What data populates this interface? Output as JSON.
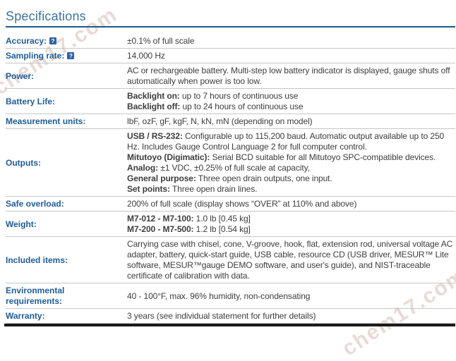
{
  "watermark": {
    "text": "chem17.com"
  },
  "header": {
    "title": "Specifications"
  },
  "help_glyph": "?",
  "colors": {
    "title": "#3b74a1",
    "header_rule": "#1f5a83",
    "label_text": "#1e5c9a",
    "value_text": "#3d3d3d",
    "row_separator": "#c6c6c6",
    "bottom_rule": "#1b1b1b",
    "help_icon_bg": "#2f62a4"
  },
  "rows": [
    {
      "label": "Accuracy:",
      "help": true,
      "lines": [
        {
          "text": "±0.1% of full scale"
        }
      ]
    },
    {
      "label": "Sampling rate:",
      "help": true,
      "lines": [
        {
          "text": "14,000 Hz"
        }
      ]
    },
    {
      "label": "Power:",
      "lines": [
        {
          "text": "AC or rechargeable battery. Multi-step low battery indicator is displayed, gauge shuts off automatically when power is too low."
        }
      ]
    },
    {
      "label": "Battery Life:",
      "lines": [
        {
          "bold": "Backlight on:",
          "text": " up to 7 hours of continuous use"
        },
        {
          "bold": "Backlight off:",
          "text": " up to 24 hours of continuous use"
        }
      ]
    },
    {
      "label": "Measurement units:",
      "lines": [
        {
          "text": "lbF, ozF, gF, kgF, N, kN, mN (depending on model)"
        }
      ]
    },
    {
      "label": "Outputs:",
      "lines": [
        {
          "bold": "USB / RS-232:",
          "text": " Configurable up to 115,200 baud. Automatic output available up to 250 Hz. Includes Gauge Control Language 2 for full computer control."
        },
        {
          "bold": "Mitutoyo (Digimatic):",
          "text": " Serial BCD suitable for all Mitutoyo SPC-compatible devices."
        },
        {
          "bold": "Analog:",
          "text": " ±1 VDC, ±0.25% of full scale at capacity,"
        },
        {
          "bold": "General purpose:",
          "text": " Three open drain outputs, one input."
        },
        {
          "bold": "Set points:",
          "text": " Three open drain lines."
        }
      ]
    },
    {
      "label": "Safe overload:",
      "lines": [
        {
          "text": "200% of full scale (display shows “OVER” at 110% and above)"
        }
      ]
    },
    {
      "label": "Weight:",
      "lines": [
        {
          "bold": "M7-012 - M7-100:",
          "text": " 1.0 lb [0.45 kg]"
        },
        {
          "bold": "M7-200 - M7-500:",
          "text": " 1.2 lb [0.54 kg]"
        }
      ]
    },
    {
      "label": "Included items:",
      "lines": [
        {
          "text": "Carrying case with chisel, cone, V-groove, hook, flat, extension rod, universal voltage AC adapter, battery, quick-start guide, USB cable, resource CD (USB driver, MESUR™ Lite software, MESUR™gauge DEMO software, and user's guide), and NIST-traceable certificate of calibration with data."
        }
      ]
    },
    {
      "label": "Environmental requirements:",
      "lines": [
        {
          "text": "40 - 100°F, max. 96% humidity, non-condensating"
        }
      ]
    },
    {
      "label": "Warranty:",
      "lines": [
        {
          "text": "3 years (see individual statement for further details)"
        }
      ]
    }
  ]
}
